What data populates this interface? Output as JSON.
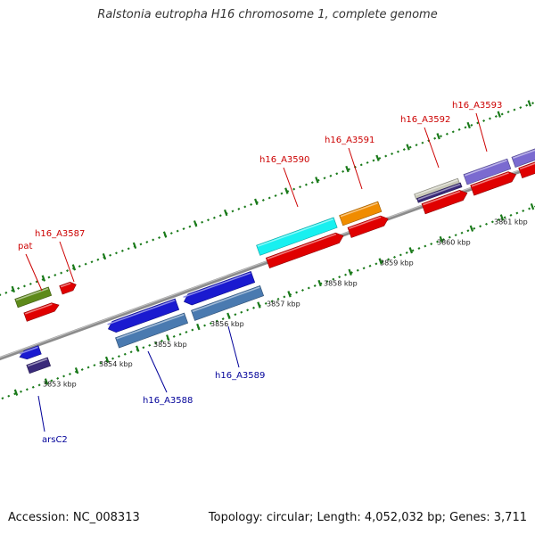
{
  "title": "Ralstonia eutropha H16 chromosome 1, complete genome",
  "footer": {
    "accession": "Accession: NC_008313",
    "stats": "Topology: circular; Length: 4,052,032 bp; Genes: 3,711"
  },
  "colors": {
    "backbone": "#8c8c8c",
    "tick": "#1a7a1a",
    "label_forward": "#cc0000",
    "label_reverse": "#000099",
    "ruler_text": "#222222",
    "red_cds": "#e00000",
    "blue_cds": "#1a1ad0",
    "steel_cds": "#4a7ab0",
    "cyan_cds": "#18f0f0",
    "orange_cds": "#f08c00",
    "olive_cds": "#5e8a1a",
    "navy_cds": "#3a2a7a",
    "violet_cds": "#7a6ad0",
    "pale_cds": "#c8c8b8"
  },
  "ruler": [
    {
      "label": "3853 kbp"
    },
    {
      "label": "3854 kbp"
    },
    {
      "label": "3855 kbp"
    },
    {
      "label": "3856 kbp"
    },
    {
      "label": "3857 kbp"
    },
    {
      "label": "3858 kbp"
    },
    {
      "label": "3859 kbp"
    },
    {
      "label": "3860 kbp"
    },
    {
      "label": "3861 kbp"
    }
  ],
  "gene_labels": [
    {
      "name": "pat",
      "strand": "forward"
    },
    {
      "name": "h16_A3587",
      "strand": "forward"
    },
    {
      "name": "h16_A3590",
      "strand": "forward"
    },
    {
      "name": "h16_A3591",
      "strand": "forward"
    },
    {
      "name": "h16_A3592",
      "strand": "forward"
    },
    {
      "name": "h16_A3593",
      "strand": "forward"
    },
    {
      "name": "arsC2",
      "strand": "reverse"
    },
    {
      "name": "h16_A3588",
      "strand": "reverse"
    },
    {
      "name": "h16_A3589",
      "strand": "reverse"
    }
  ],
  "features": [
    {
      "color": "red_cds",
      "kind": "arrow-right"
    },
    {
      "color": "olive_cds",
      "kind": "bar"
    },
    {
      "color": "red_cds",
      "kind": "arrow-right"
    },
    {
      "color": "red_cds",
      "kind": "arrow-right"
    },
    {
      "color": "blue_cds",
      "kind": "arrow-left"
    },
    {
      "color": "navy_cds",
      "kind": "bar"
    },
    {
      "color": "blue_cds",
      "kind": "arrow-left"
    },
    {
      "color": "blue_cds",
      "kind": "arrow-left"
    },
    {
      "color": "steel_cds",
      "kind": "bar"
    },
    {
      "color": "steel_cds",
      "kind": "bar"
    },
    {
      "color": "cyan_cds",
      "kind": "bar"
    },
    {
      "color": "red_cds",
      "kind": "arrow-right"
    },
    {
      "color": "orange_cds",
      "kind": "bar"
    },
    {
      "color": "red_cds",
      "kind": "arrow-right"
    },
    {
      "color": "pale_cds",
      "kind": "bar"
    },
    {
      "color": "navy_cds",
      "kind": "bar"
    },
    {
      "color": "red_cds",
      "kind": "arrow-right"
    },
    {
      "color": "violet_cds",
      "kind": "bar"
    },
    {
      "color": "red_cds",
      "kind": "arrow-right"
    },
    {
      "color": "violet_cds",
      "kind": "bar"
    },
    {
      "color": "red_cds",
      "kind": "arrow-right"
    }
  ]
}
